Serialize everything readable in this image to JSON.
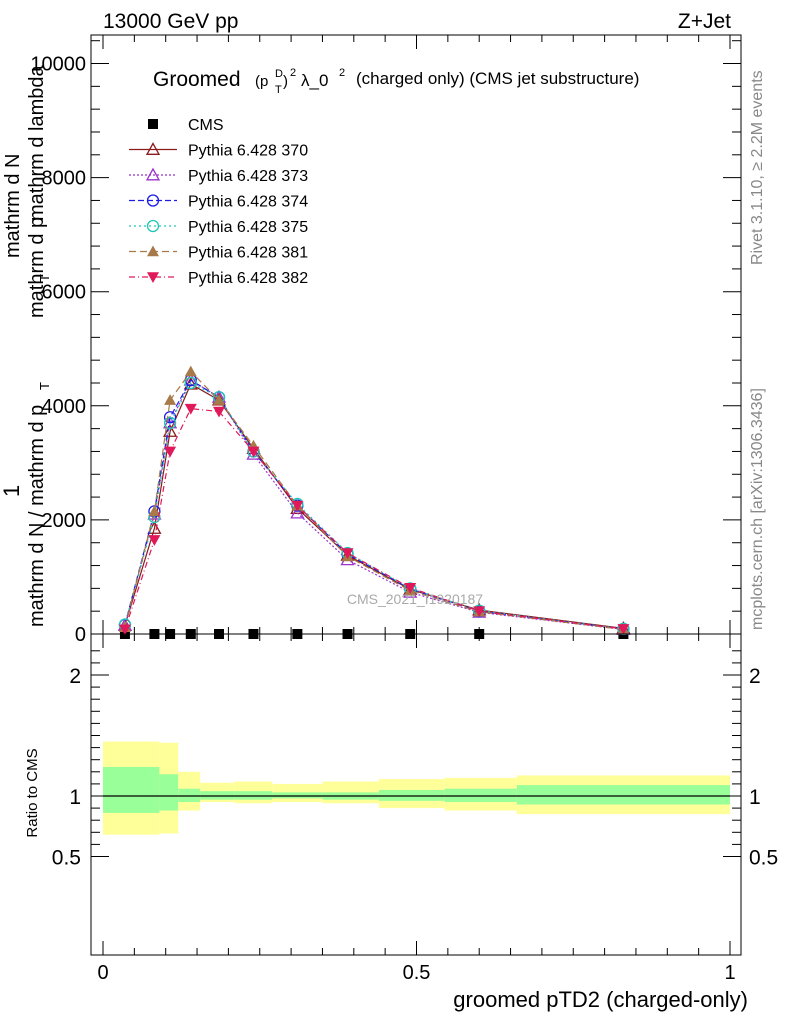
{
  "header": {
    "left": "13000 GeV pp",
    "right": "Z+Jet"
  },
  "side_labels": {
    "rivet": "Rivet 3.1.10, ≥ 2.2M events",
    "mcplots": "mcplots.cern.ch [arXiv:1306.3436]"
  },
  "watermark": "CMS_2021_I1920187",
  "colors": {
    "cms": "#000000",
    "p370": "#8b1a1a",
    "p373": "#9a32cd",
    "p374": "#1c1ce6",
    "p375": "#20c8b4",
    "p381": "#a87a4a",
    "p382": "#e0195a",
    "band_inner": "#99ff99",
    "band_outer": "#ffff99"
  },
  "chart_data": [
    {
      "type": "line",
      "title_main": "Groomed",
      "title_tail": "(charged only) (CMS jet substructure)",
      "title_formula": {
        "p": "(p",
        "sup_d": "D",
        "sub_t": "T",
        "close": ")",
        "sup_2": "2",
        "lambda": "λ_0",
        "sup_l": "2"
      },
      "xlabel": "groomed pTD2 (charged-only)",
      "ylabel_top": "1",
      "ylabel_line1": "mathrm d N / mathrm d p",
      "ylabel_line2": "mathrm d N",
      "ylabel_line3": "T",
      "ylabel_line4": "mathrm d p",
      "ylabel_line5": "T",
      "ylabel_line6": "mathrm d lambda",
      "xlim": [
        0,
        1
      ],
      "ylim": [
        0,
        10500
      ],
      "yticks": [
        0,
        2000,
        4000,
        6000,
        8000,
        10000
      ],
      "ytick_labels": [
        "0",
        "2000",
        "4000",
        "6000",
        "8000",
        "10000"
      ],
      "legend_position": "top-left",
      "legend": [
        {
          "label": "CMS",
          "color_key": "cms",
          "marker": "square",
          "dash": ""
        },
        {
          "label": "Pythia 6.428 370",
          "color_key": "p370",
          "marker": "triangle-open",
          "dash": ""
        },
        {
          "label": "Pythia 6.428 373",
          "color_key": "p373",
          "marker": "triangle-open",
          "dash": "2,2"
        },
        {
          "label": "Pythia 6.428 374",
          "color_key": "p374",
          "marker": "circle-open",
          "dash": "6,3"
        },
        {
          "label": "Pythia 6.428 375",
          "color_key": "p375",
          "marker": "circle-open",
          "dash": "2,3"
        },
        {
          "label": "Pythia 6.428 381",
          "color_key": "p381",
          "marker": "triangle-filled",
          "dash": "7,4"
        },
        {
          "label": "Pythia 6.428 382",
          "color_key": "p382",
          "marker": "triangle-down",
          "dash": "6,3,1,3"
        }
      ],
      "x": [
        0.035,
        0.082,
        0.107,
        0.14,
        0.185,
        0.24,
        0.31,
        0.39,
        0.49,
        0.6,
        0.83
      ],
      "series": [
        {
          "name": "CMS",
          "values": [
            0,
            0,
            0,
            0,
            0,
            0,
            0,
            0,
            0,
            0,
            0
          ]
        },
        {
          "name": "Pythia 6.428 370",
          "values": [
            150,
            1850,
            3550,
            4380,
            4100,
            3250,
            2200,
            1380,
            780,
            420,
            100
          ]
        },
        {
          "name": "Pythia 6.428 373",
          "values": [
            150,
            2100,
            3700,
            4450,
            4150,
            3150,
            2120,
            1300,
            730,
            380,
            80
          ]
        },
        {
          "name": "Pythia 6.428 374",
          "values": [
            160,
            2150,
            3800,
            4450,
            4150,
            3200,
            2250,
            1400,
            790,
            400,
            90
          ]
        },
        {
          "name": "Pythia 6.428 375",
          "values": [
            165,
            2050,
            3700,
            4400,
            4150,
            3200,
            2280,
            1420,
            800,
            410,
            90
          ]
        },
        {
          "name": "Pythia 6.428 381",
          "values": [
            120,
            2150,
            4100,
            4600,
            4100,
            3300,
            2250,
            1360,
            760,
            390,
            80
          ]
        },
        {
          "name": "Pythia 6.428 382",
          "values": [
            80,
            1650,
            3200,
            3950,
            3900,
            3200,
            2250,
            1420,
            810,
            400,
            90
          ]
        }
      ]
    },
    {
      "type": "area",
      "ylabel": "Ratio to CMS",
      "xlim": [
        0,
        1
      ],
      "ylim": [
        0.35,
        2.25
      ],
      "yticks": [
        0.5,
        1,
        2
      ],
      "ytick_labels": [
        "0.5",
        "1",
        "2"
      ],
      "xticks": [
        0,
        0.5,
        1
      ],
      "xtick_labels": [
        "0",
        "0.5",
        "1"
      ],
      "bins": [
        {
          "x0": 0.0,
          "x1": 0.09,
          "inner_lo": 0.86,
          "inner_hi": 1.24,
          "outer_lo": 0.68,
          "outer_hi": 1.45
        },
        {
          "x0": 0.09,
          "x1": 0.12,
          "inner_lo": 0.88,
          "inner_hi": 1.18,
          "outer_lo": 0.69,
          "outer_hi": 1.44
        },
        {
          "x0": 0.12,
          "x1": 0.155,
          "inner_lo": 0.95,
          "inner_hi": 1.06,
          "outer_lo": 0.88,
          "outer_hi": 1.2
        },
        {
          "x0": 0.155,
          "x1": 0.21,
          "inner_lo": 0.97,
          "inner_hi": 1.04,
          "outer_lo": 0.95,
          "outer_hi": 1.11
        },
        {
          "x0": 0.21,
          "x1": 0.27,
          "inner_lo": 0.97,
          "inner_hi": 1.04,
          "outer_lo": 0.94,
          "outer_hi": 1.12
        },
        {
          "x0": 0.27,
          "x1": 0.35,
          "inner_lo": 0.98,
          "inner_hi": 1.03,
          "outer_lo": 0.95,
          "outer_hi": 1.1
        },
        {
          "x0": 0.35,
          "x1": 0.44,
          "inner_lo": 0.97,
          "inner_hi": 1.03,
          "outer_lo": 0.94,
          "outer_hi": 1.12
        },
        {
          "x0": 0.44,
          "x1": 0.545,
          "inner_lo": 0.96,
          "inner_hi": 1.05,
          "outer_lo": 0.9,
          "outer_hi": 1.14
        },
        {
          "x0": 0.545,
          "x1": 0.66,
          "inner_lo": 0.95,
          "inner_hi": 1.06,
          "outer_lo": 0.88,
          "outer_hi": 1.15
        },
        {
          "x0": 0.66,
          "x1": 1.0,
          "inner_lo": 0.93,
          "inner_hi": 1.09,
          "outer_lo": 0.85,
          "outer_hi": 1.17
        }
      ]
    }
  ]
}
